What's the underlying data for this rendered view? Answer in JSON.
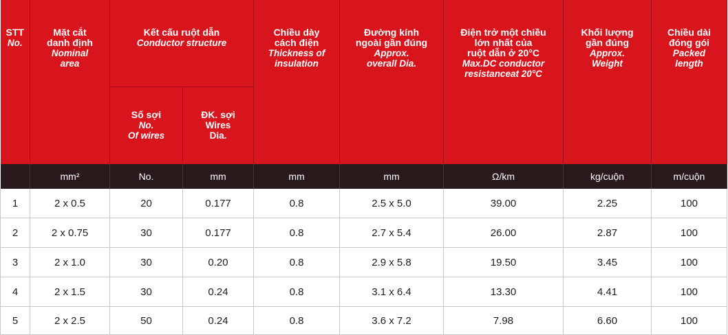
{
  "header": {
    "stt": {
      "vn": "STT",
      "en": "No."
    },
    "area": {
      "vn1": "Mặt cắt",
      "vn2": "danh định",
      "en1": "Nominal",
      "en2": "area"
    },
    "conductor": {
      "vn": "Kết cấu ruột dẫn",
      "en": "Conductor structure"
    },
    "wires": {
      "vn": "Số sợi",
      "en1": "No.",
      "en2": "Of wires"
    },
    "dia": {
      "vn": "ĐK. sợi",
      "en1": "Wires",
      "en2": "Dia."
    },
    "thickness": {
      "vn1": "Chiều dày",
      "vn2": "cách điện",
      "en1": "Thickness of",
      "en2": "insulation"
    },
    "overall": {
      "vn1": "Đường kính",
      "vn2": "ngoài gần đúng",
      "en1": "Approx.",
      "en2": "overall Dia."
    },
    "resistance": {
      "vn1": "Điện trở một chiều",
      "vn2": "lớn nhất của",
      "vn3": "ruột dẫn ở 20°C",
      "en1": "Max.DC conductor",
      "en2": "resistanceat 20°C"
    },
    "weight": {
      "vn1": "Khối lượng",
      "vn2": "gần đúng",
      "en1": "Approx.",
      "en2": "Weight"
    },
    "length": {
      "vn1": "Chiều dài",
      "vn2": "đóng gói",
      "en1": "Packed",
      "en2": "length"
    }
  },
  "units": [
    "",
    "mm²",
    "No.",
    "mm",
    "mm",
    "mm",
    "Ω/km",
    "kg/cuộn",
    "m/cuộn"
  ],
  "rows": [
    {
      "stt": "1",
      "area": "2 x 0.5",
      "wires": "20",
      "dia": "0.177",
      "thickness": "0.8",
      "overall": "2.5 x 5.0",
      "resistance": "39.00",
      "weight": "2.25",
      "length": "100"
    },
    {
      "stt": "2",
      "area": "2 x 0.75",
      "wires": "30",
      "dia": "0.177",
      "thickness": "0.8",
      "overall": "2.7 x 5.4",
      "resistance": "26.00",
      "weight": "2.87",
      "length": "100"
    },
    {
      "stt": "3",
      "area": "2 x 1.0",
      "wires": "30",
      "dia": "0.20",
      "thickness": "0.8",
      "overall": "2.9 x 5.8",
      "resistance": "19.50",
      "weight": "3.45",
      "length": "100"
    },
    {
      "stt": "4",
      "area": "2 x 1.5",
      "wires": "30",
      "dia": "0.24",
      "thickness": "0.8",
      "overall": "3.1 x 6.4",
      "resistance": "13.30",
      "weight": "4.41",
      "length": "100"
    },
    {
      "stt": "5",
      "area": "2 x 2.5",
      "wires": "50",
      "dia": "0.24",
      "thickness": "0.8",
      "overall": "3.6 x 7.2",
      "resistance": "7.98",
      "weight": "6.60",
      "length": "100"
    }
  ],
  "colors": {
    "header_red": "#d8141d",
    "unit_bar": "#2a1a1b",
    "text": "#1c1c1c"
  }
}
